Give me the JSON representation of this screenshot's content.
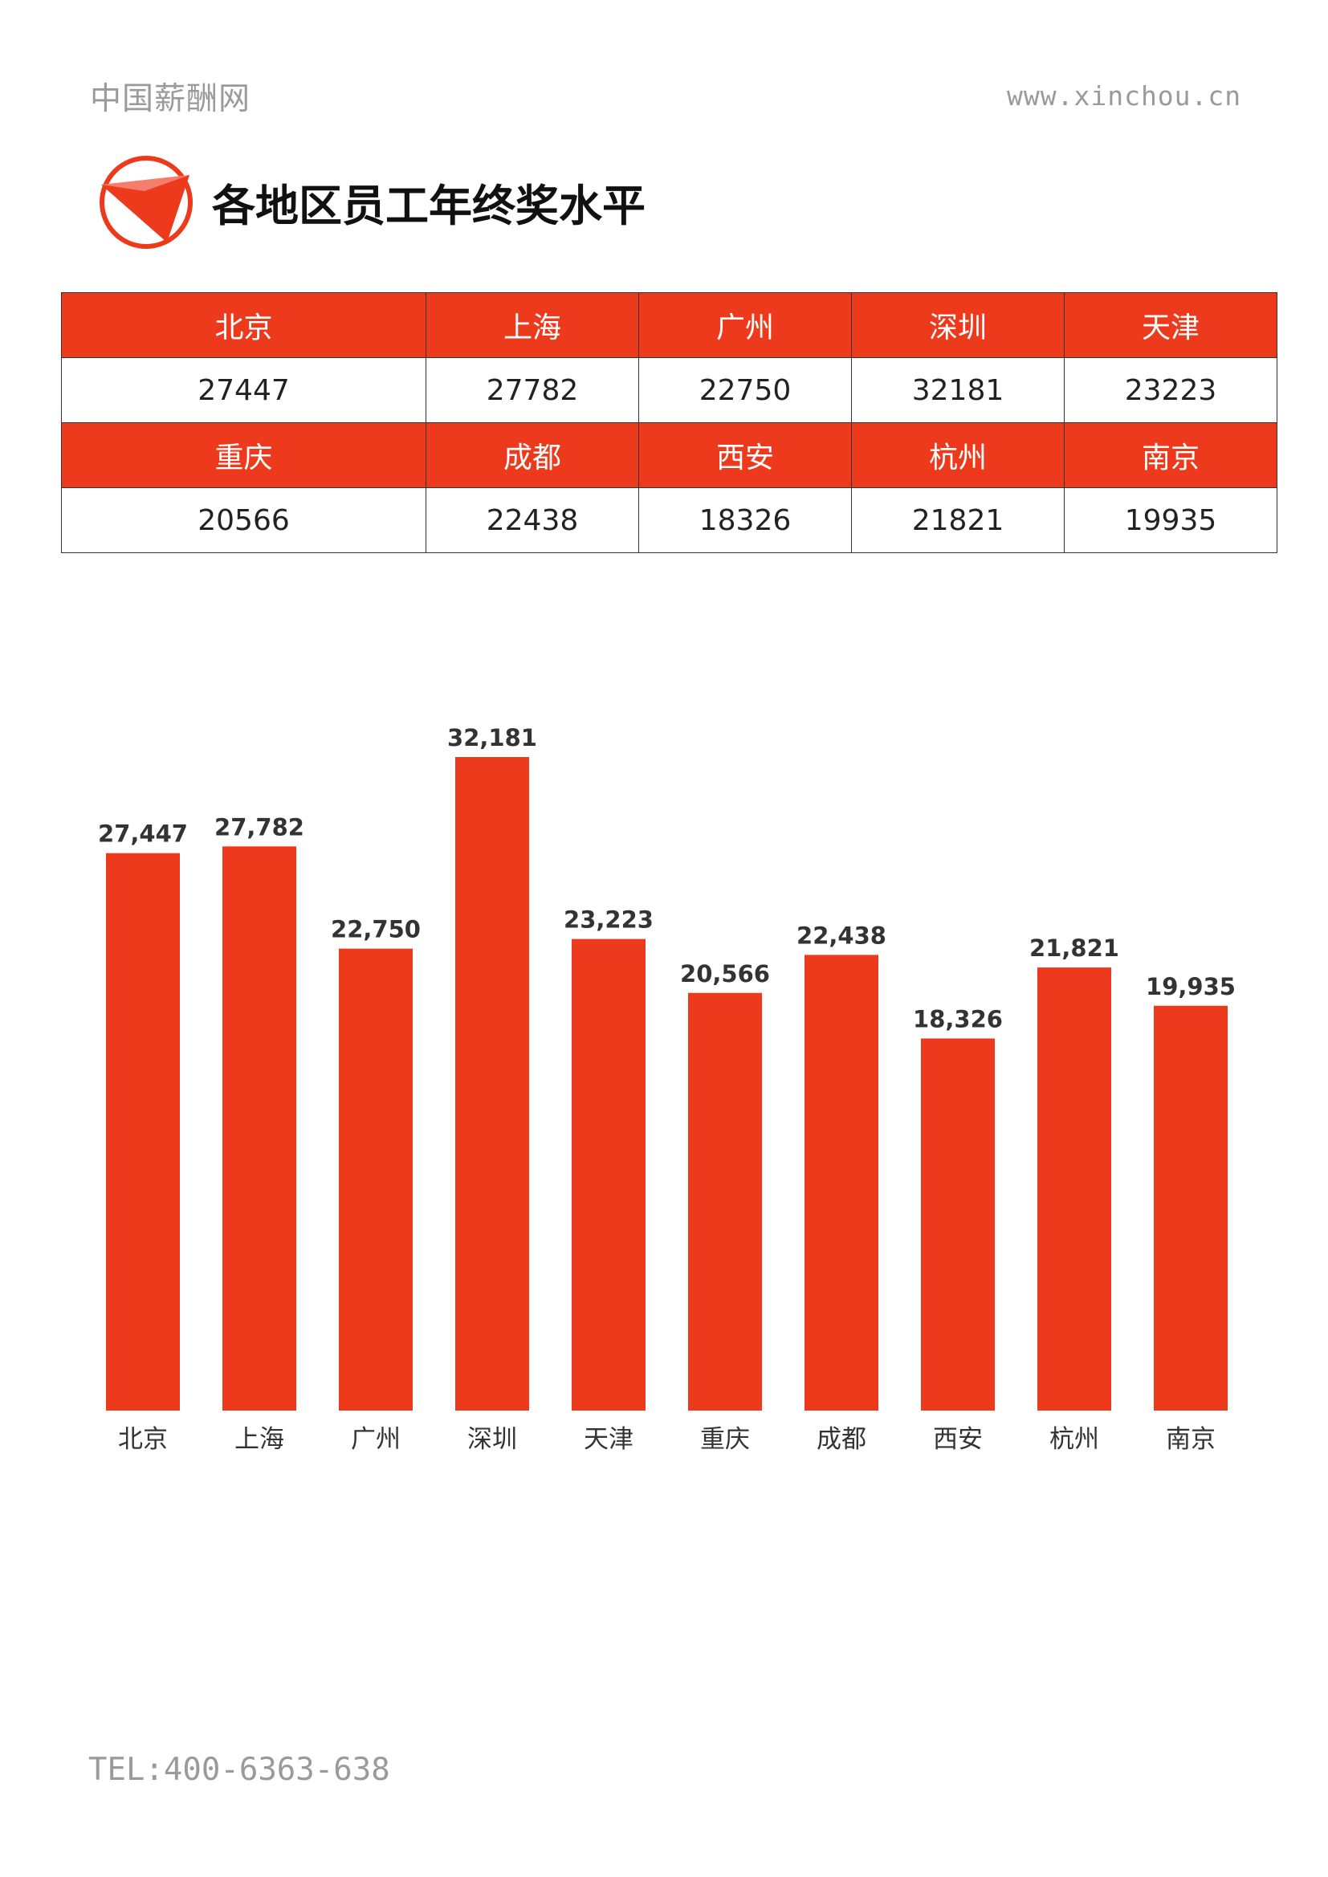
{
  "header": {
    "brand": "中国薪酬网",
    "url": "www.xinchou.cn"
  },
  "title": "各地区员工年终奖水平",
  "accent_color": "#ee3a1c",
  "logo_icon": "red-triangle-circle-logo",
  "table": {
    "rows": [
      {
        "type": "city",
        "cells": [
          "北京",
          "上海",
          "广州",
          "深圳",
          "天津"
        ]
      },
      {
        "type": "val",
        "cells": [
          "27447",
          "27782",
          "22750",
          "32181",
          "23223"
        ]
      },
      {
        "type": "city",
        "cells": [
          "重庆",
          "成都",
          "西安",
          "杭州",
          "南京"
        ]
      },
      {
        "type": "val",
        "cells": [
          "20566",
          "22438",
          "18326",
          "21821",
          "19935"
        ]
      }
    ]
  },
  "chart_data": {
    "type": "bar",
    "categories": [
      "北京",
      "上海",
      "广州",
      "深圳",
      "天津",
      "重庆",
      "成都",
      "西安",
      "杭州",
      "南京"
    ],
    "values": [
      27447,
      27782,
      22750,
      32181,
      23223,
      20566,
      22438,
      18326,
      21821,
      19935
    ],
    "value_labels": [
      "27,447",
      "27,782",
      "22,750",
      "32,181",
      "23,223",
      "20,566",
      "22,438",
      "18,326",
      "21,821",
      "19,935"
    ],
    "title": "",
    "xlabel": "",
    "ylabel": "",
    "ylim": [
      0,
      32181
    ],
    "grid": false,
    "bar_color": "#ee3a1c"
  },
  "footer": {
    "tel": "TEL:400-6363-638"
  }
}
